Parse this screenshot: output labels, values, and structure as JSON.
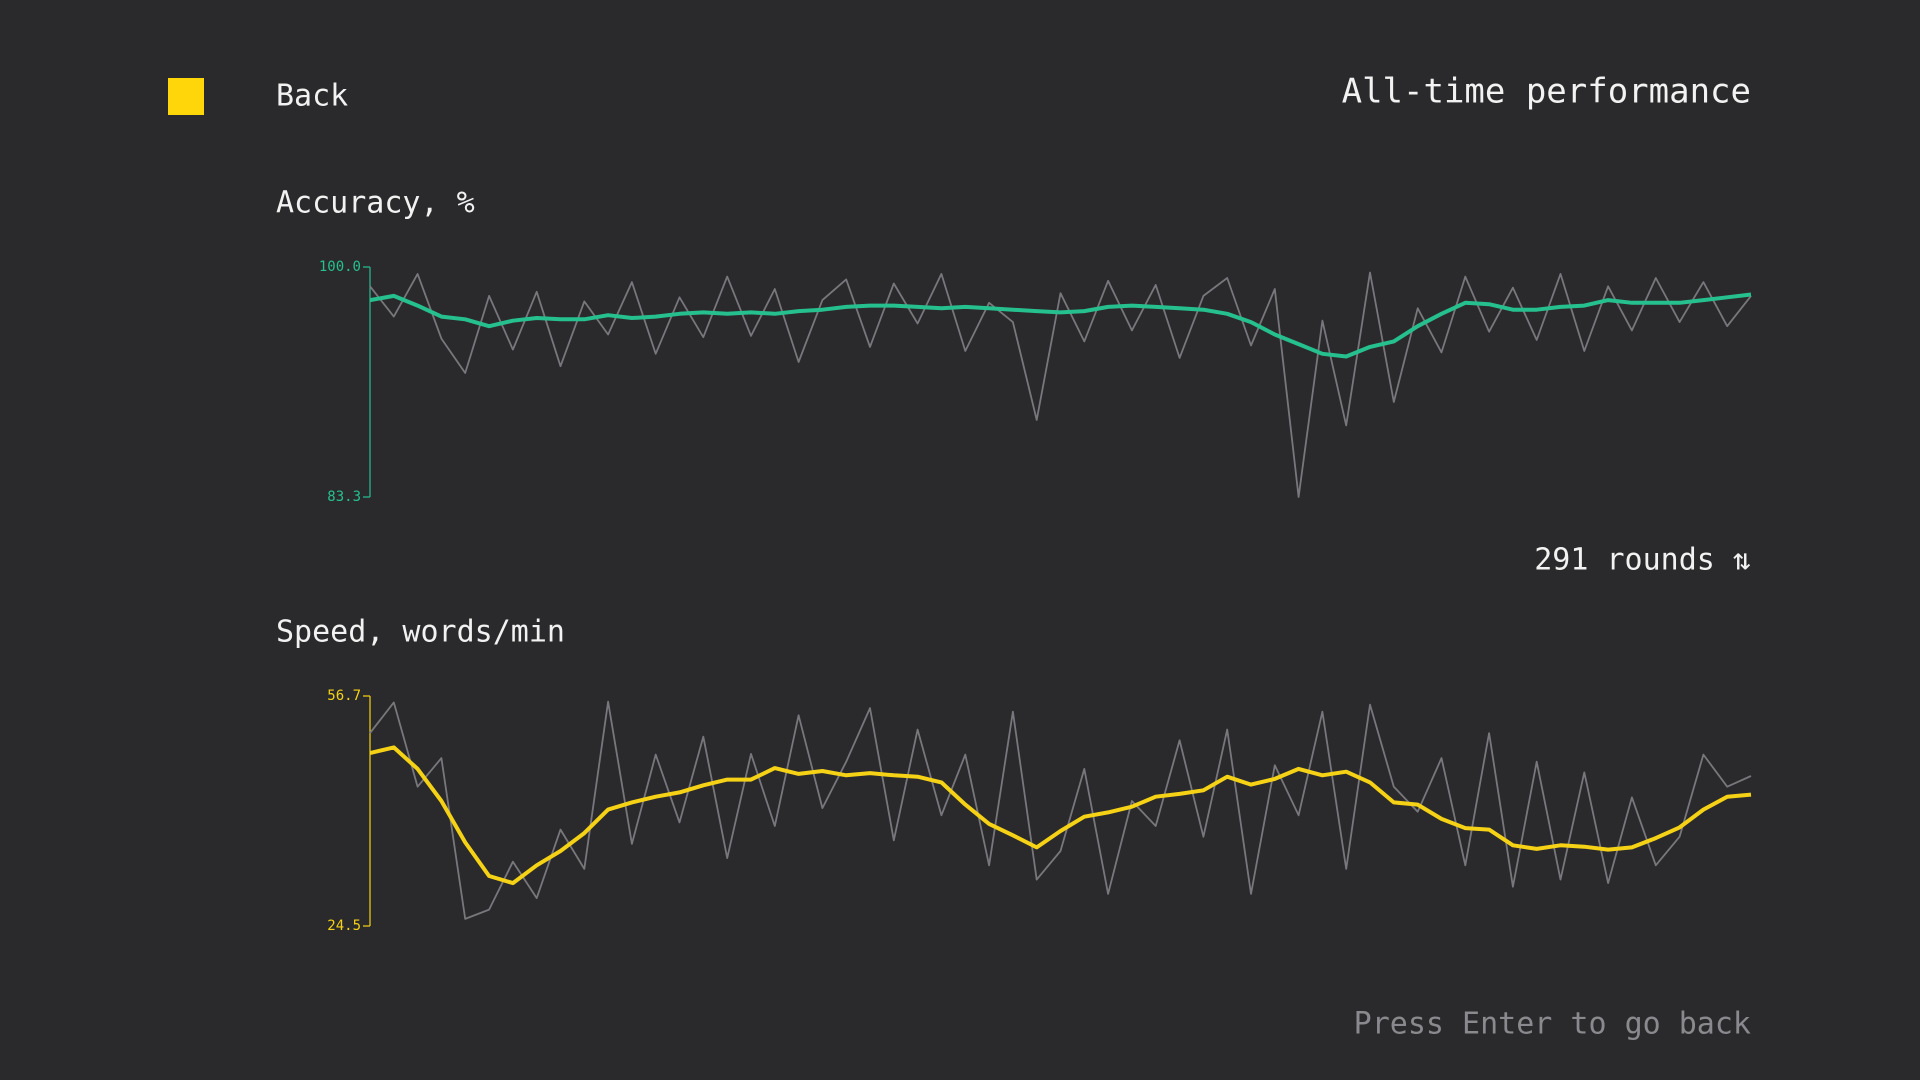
{
  "header": {
    "back": "Back",
    "title": "All-time performance"
  },
  "chart_data": [
    {
      "type": "line",
      "title": "Accuracy, %",
      "ylim": [
        83.3,
        100
      ],
      "yticks": [
        {
          "value": 100,
          "label": "100.0"
        },
        83.3
      ],
      "series": [
        {
          "color": "#77777c",
          "values": [
            98.6,
            96.4,
            99.5,
            94.8,
            92.3,
            97.9,
            94.0,
            98.2,
            92.8,
            97.5,
            95.1,
            98.9,
            93.7,
            97.8,
            94.9,
            99.3,
            95.0,
            98.4,
            93.1,
            97.6,
            99.1,
            94.2,
            98.8,
            95.9,
            99.5,
            93.9,
            97.4,
            96.0,
            88.9,
            98.1,
            94.6,
            99.0,
            95.4,
            98.7,
            93.4,
            97.9,
            99.2,
            94.3,
            98.4,
            83.3,
            96.1,
            88.5,
            99.6,
            90.2,
            97.0,
            93.8,
            99.3,
            95.3,
            98.5,
            94.7,
            99.5,
            93.9,
            98.6,
            95.4,
            99.2,
            96.0,
            98.9,
            95.7,
            97.9
          ]
        },
        {
          "color": "#26c08f",
          "values": [
            97.6,
            97.9,
            97.2,
            96.4,
            96.2,
            95.7,
            96.1,
            96.3,
            96.2,
            96.2,
            96.5,
            96.3,
            96.4,
            96.6,
            96.7,
            96.6,
            96.7,
            96.6,
            96.8,
            96.9,
            97.1,
            97.2,
            97.2,
            97.1,
            97.0,
            97.1,
            97.0,
            96.9,
            96.8,
            96.7,
            96.8,
            97.1,
            97.2,
            97.1,
            97.0,
            96.9,
            96.6,
            96.0,
            95.1,
            94.4,
            93.7,
            93.5,
            94.2,
            94.6,
            95.7,
            96.6,
            97.4,
            97.3,
            96.9,
            96.9,
            97.1,
            97.2,
            97.6,
            97.4,
            97.4,
            97.4,
            97.6,
            97.8,
            98.0
          ]
        }
      ]
    },
    {
      "type": "line",
      "title": "Speed, words/min",
      "ylim": [
        24.5,
        56.7
      ],
      "yticks": [
        56.7,
        24.5
      ],
      "series": [
        {
          "color": "#77777c",
          "values": [
            51.5,
            55.8,
            44.0,
            48.0,
            25.5,
            26.8,
            33.5,
            28.4,
            38.0,
            32.5,
            55.9,
            36.0,
            48.5,
            39.0,
            51.0,
            34.0,
            48.6,
            38.5,
            54.0,
            41.0,
            47.5,
            55.0,
            36.5,
            52.0,
            40.0,
            48.5,
            33.0,
            54.5,
            31.0,
            35.0,
            46.5,
            29.0,
            42.0,
            38.5,
            50.5,
            37.0,
            52.0,
            29.0,
            47.0,
            40.0,
            54.5,
            32.5,
            55.5,
            44.0,
            40.5,
            48.0,
            33.0,
            51.5,
            30.0,
            47.5,
            31.0,
            46.0,
            30.5,
            42.5,
            33.0,
            37.0,
            48.5,
            44.0,
            45.5
          ]
        },
        {
          "color": "#f5d216",
          "values": [
            48.7,
            49.5,
            46.5,
            42.0,
            36.2,
            31.5,
            30.5,
            33.0,
            35.0,
            37.5,
            40.8,
            41.8,
            42.6,
            43.2,
            44.2,
            45.0,
            45.0,
            46.6,
            45.8,
            46.2,
            45.6,
            45.9,
            45.6,
            45.4,
            44.6,
            41.5,
            38.8,
            37.2,
            35.5,
            37.8,
            39.8,
            40.4,
            41.2,
            42.6,
            43.0,
            43.5,
            45.4,
            44.3,
            45.1,
            46.5,
            45.6,
            46.1,
            44.6,
            41.8,
            41.5,
            39.5,
            38.2,
            38.0,
            35.8,
            35.3,
            35.8,
            35.6,
            35.2,
            35.5,
            36.8,
            38.3,
            40.8,
            42.6,
            42.9
          ]
        }
      ]
    }
  ],
  "rounds": "291 rounds ⇅",
  "footer": "Press Enter to go back"
}
